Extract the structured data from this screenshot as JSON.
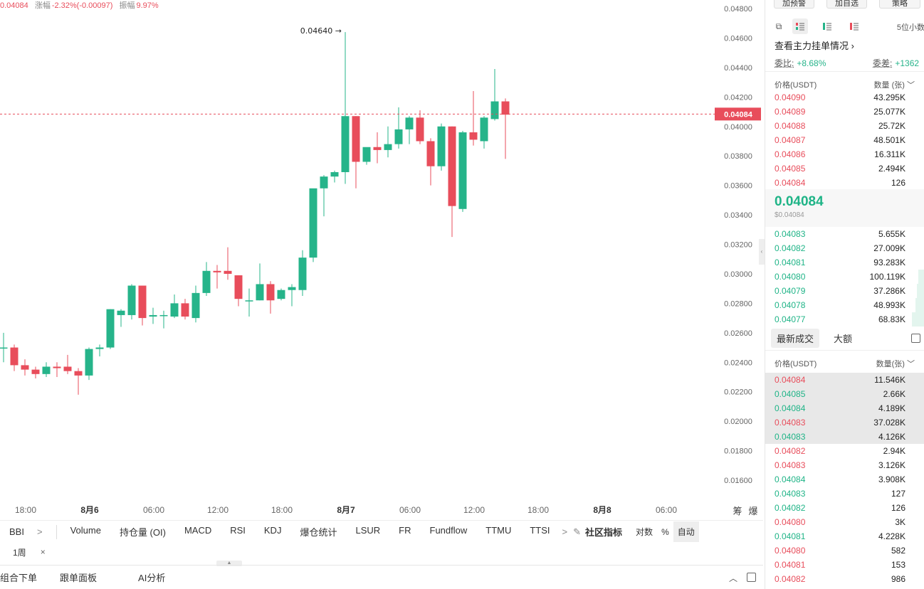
{
  "info_bar": {
    "price": "0.04084",
    "change_label": "涨幅",
    "change": "-2.32%(-0.00097)",
    "amplitude_label": "振幅",
    "amplitude": "9.97%"
  },
  "chart_data": {
    "type": "candlestick",
    "y_axis_ticks": [
      "0.04800",
      "0.04600",
      "0.04400",
      "0.04200",
      "0.04000",
      "0.03800",
      "0.03600",
      "0.03400",
      "0.03200",
      "0.03000",
      "0.02800",
      "0.02600",
      "0.02400",
      "0.02200",
      "0.02000",
      "0.01800",
      "0.01600"
    ],
    "x_axis_ticks": [
      "18:00",
      "8月6",
      "06:00",
      "12:00",
      "18:00",
      "8月7",
      "06:00",
      "12:00",
      "18:00",
      "8月8",
      "06:00"
    ],
    "current_price": "0.04084",
    "high_marker": "0.04640 →",
    "candles": [
      {
        "o": 0.025,
        "h": 0.026,
        "l": 0.024,
        "c": 0.025
      },
      {
        "o": 0.025,
        "h": 0.0252,
        "l": 0.0234,
        "c": 0.0238
      },
      {
        "o": 0.0238,
        "h": 0.0242,
        "l": 0.0231,
        "c": 0.0235
      },
      {
        "o": 0.0235,
        "h": 0.0237,
        "l": 0.0229,
        "c": 0.0232
      },
      {
        "o": 0.0232,
        "h": 0.024,
        "l": 0.023,
        "c": 0.0237
      },
      {
        "o": 0.0237,
        "h": 0.024,
        "l": 0.023,
        "c": 0.0236
      },
      {
        "o": 0.0237,
        "h": 0.0245,
        "l": 0.0232,
        "c": 0.0234
      },
      {
        "o": 0.0234,
        "h": 0.0236,
        "l": 0.0218,
        "c": 0.0231
      },
      {
        "o": 0.0231,
        "h": 0.025,
        "l": 0.0228,
        "c": 0.0249
      },
      {
        "o": 0.0249,
        "h": 0.0252,
        "l": 0.0244,
        "c": 0.025
      },
      {
        "o": 0.025,
        "h": 0.0276,
        "l": 0.0249,
        "c": 0.0276
      },
      {
        "o": 0.0272,
        "h": 0.0276,
        "l": 0.0264,
        "c": 0.0275
      },
      {
        "o": 0.0272,
        "h": 0.0293,
        "l": 0.0269,
        "c": 0.0292
      },
      {
        "o": 0.0292,
        "h": 0.0292,
        "l": 0.0265,
        "c": 0.027
      },
      {
        "o": 0.0271,
        "h": 0.0277,
        "l": 0.0266,
        "c": 0.0272
      },
      {
        "o": 0.0272,
        "h": 0.0275,
        "l": 0.0263,
        "c": 0.0272
      },
      {
        "o": 0.0271,
        "h": 0.0286,
        "l": 0.027,
        "c": 0.028
      },
      {
        "o": 0.028,
        "h": 0.0283,
        "l": 0.0269,
        "c": 0.0271
      },
      {
        "o": 0.027,
        "h": 0.0292,
        "l": 0.0267,
        "c": 0.0287
      },
      {
        "o": 0.0287,
        "h": 0.0308,
        "l": 0.0285,
        "c": 0.0302
      },
      {
        "o": 0.0302,
        "h": 0.0306,
        "l": 0.029,
        "c": 0.0301
      },
      {
        "o": 0.0302,
        "h": 0.0318,
        "l": 0.0296,
        "c": 0.03
      },
      {
        "o": 0.0299,
        "h": 0.0299,
        "l": 0.0278,
        "c": 0.0283
      },
      {
        "o": 0.0282,
        "h": 0.029,
        "l": 0.0271,
        "c": 0.0282
      },
      {
        "o": 0.0282,
        "h": 0.0307,
        "l": 0.0282,
        "c": 0.0293
      },
      {
        "o": 0.0293,
        "h": 0.0295,
        "l": 0.0273,
        "c": 0.0282
      },
      {
        "o": 0.0283,
        "h": 0.029,
        "l": 0.0282,
        "c": 0.0289
      },
      {
        "o": 0.0289,
        "h": 0.0293,
        "l": 0.0278,
        "c": 0.0291
      },
      {
        "o": 0.0289,
        "h": 0.0316,
        "l": 0.0285,
        "c": 0.0311
      },
      {
        "o": 0.0311,
        "h": 0.0357,
        "l": 0.0308,
        "c": 0.0358
      },
      {
        "o": 0.0358,
        "h": 0.0367,
        "l": 0.0339,
        "c": 0.0366
      },
      {
        "o": 0.0366,
        "h": 0.037,
        "l": 0.0362,
        "c": 0.0369
      },
      {
        "o": 0.0369,
        "h": 0.0464,
        "l": 0.0361,
        "c": 0.0407
      },
      {
        "o": 0.0407,
        "h": 0.0407,
        "l": 0.0358,
        "c": 0.0376
      },
      {
        "o": 0.0376,
        "h": 0.0385,
        "l": 0.0374,
        "c": 0.0386
      },
      {
        "o": 0.0386,
        "h": 0.0396,
        "l": 0.0375,
        "c": 0.0384
      },
      {
        "o": 0.0384,
        "h": 0.04,
        "l": 0.0379,
        "c": 0.0388
      },
      {
        "o": 0.0388,
        "h": 0.0413,
        "l": 0.0385,
        "c": 0.0398
      },
      {
        "o": 0.0398,
        "h": 0.0407,
        "l": 0.0388,
        "c": 0.0406
      },
      {
        "o": 0.0406,
        "h": 0.0411,
        "l": 0.0388,
        "c": 0.039
      },
      {
        "o": 0.039,
        "h": 0.0392,
        "l": 0.036,
        "c": 0.0373
      },
      {
        "o": 0.0373,
        "h": 0.0402,
        "l": 0.037,
        "c": 0.04
      },
      {
        "o": 0.04,
        "h": 0.04,
        "l": 0.0325,
        "c": 0.0346
      },
      {
        "o": 0.0344,
        "h": 0.0397,
        "l": 0.0342,
        "c": 0.0396
      },
      {
        "o": 0.0396,
        "h": 0.0424,
        "l": 0.0387,
        "c": 0.0391
      },
      {
        "o": 0.039,
        "h": 0.0407,
        "l": 0.0385,
        "c": 0.0406
      },
      {
        "o": 0.0405,
        "h": 0.0439,
        "l": 0.0404,
        "c": 0.0417
      },
      {
        "o": 0.0417,
        "h": 0.0419,
        "l": 0.0378,
        "c": 0.0408
      }
    ],
    "up_color": "#26b48a",
    "down_color": "#e84d5b"
  },
  "axis_extras": {
    "chip_label": "筹",
    "liq_label": "爆"
  },
  "indicators": {
    "bbi": "BBI",
    "more_arrow": ">",
    "items": [
      "Volume",
      "持仓量 (OI)",
      "MACD",
      "RSI",
      "KDJ",
      "爆仓统计",
      "LSUR",
      "FR",
      "Fundflow",
      "TTMU",
      "TTSI"
    ],
    "next_arrow": ">",
    "community": "社区指标",
    "log": "对数",
    "percent": "%",
    "auto": "自动"
  },
  "period": {
    "label": "1周",
    "close": "×"
  },
  "bottom_tabs": [
    "组合下单",
    "跟单面板",
    "AI分析"
  ],
  "top_buttons": [
    "加预警",
    "加自选",
    "策略"
  ],
  "orderbook": {
    "decimal": "5位小数",
    "main_force": "查看主力挂单情况",
    "ratio_label": "委比:",
    "ratio_value": "+8.68%",
    "diff_label": "委差:",
    "diff_value": "+1362",
    "price_header": "价格(USDT)",
    "qty_header": "数量 (张)",
    "asks": [
      {
        "price": "0.04090",
        "qty": "43.295K"
      },
      {
        "price": "0.04089",
        "qty": "25.077K"
      },
      {
        "price": "0.04088",
        "qty": "25.72K"
      },
      {
        "price": "0.04087",
        "qty": "48.501K"
      },
      {
        "price": "0.04086",
        "qty": "16.311K"
      },
      {
        "price": "0.04085",
        "qty": "2.494K"
      },
      {
        "price": "0.04084",
        "qty": "126"
      }
    ],
    "mid_price": "0.04084",
    "mid_usd": "$0.04084",
    "bids": [
      {
        "price": "0.04083",
        "qty": "5.655K",
        "depth": 0
      },
      {
        "price": "0.04082",
        "qty": "27.009K",
        "depth": 0
      },
      {
        "price": "0.04081",
        "qty": "93.283K",
        "depth": 0
      },
      {
        "price": "0.04080",
        "qty": "100.119K",
        "depth": 0.04
      },
      {
        "price": "0.04079",
        "qty": "37.286K",
        "depth": 0.05
      },
      {
        "price": "0.04078",
        "qty": "48.993K",
        "depth": 0.06
      },
      {
        "price": "0.04077",
        "qty": "68.83K",
        "depth": 0.08
      }
    ]
  },
  "trades": {
    "tab_latest": "最新成交",
    "tab_large": "大额",
    "price_header": "价格(USDT)",
    "qty_header": "数量(张)",
    "rows": [
      {
        "price": "0.04084",
        "qty": "11.546K",
        "side": "sell"
      },
      {
        "price": "0.04085",
        "qty": "2.66K",
        "side": "buy"
      },
      {
        "price": "0.04084",
        "qty": "4.189K",
        "side": "buy"
      },
      {
        "price": "0.04083",
        "qty": "37.028K",
        "side": "sell"
      },
      {
        "price": "0.04083",
        "qty": "4.126K",
        "side": "buy"
      },
      {
        "price": "0.04082",
        "qty": "2.94K",
        "side": "sell"
      },
      {
        "price": "0.04083",
        "qty": "3.126K",
        "side": "sell"
      },
      {
        "price": "0.04084",
        "qty": "3.908K",
        "side": "buy"
      },
      {
        "price": "0.04083",
        "qty": "127",
        "side": "buy"
      },
      {
        "price": "0.04082",
        "qty": "126",
        "side": "buy"
      },
      {
        "price": "0.04080",
        "qty": "3K",
        "side": "sell"
      },
      {
        "price": "0.04081",
        "qty": "4.228K",
        "side": "buy"
      },
      {
        "price": "0.04080",
        "qty": "582",
        "side": "sell"
      },
      {
        "price": "0.04081",
        "qty": "153",
        "side": "sell"
      },
      {
        "price": "0.04082",
        "qty": "986",
        "side": "sell"
      }
    ]
  }
}
